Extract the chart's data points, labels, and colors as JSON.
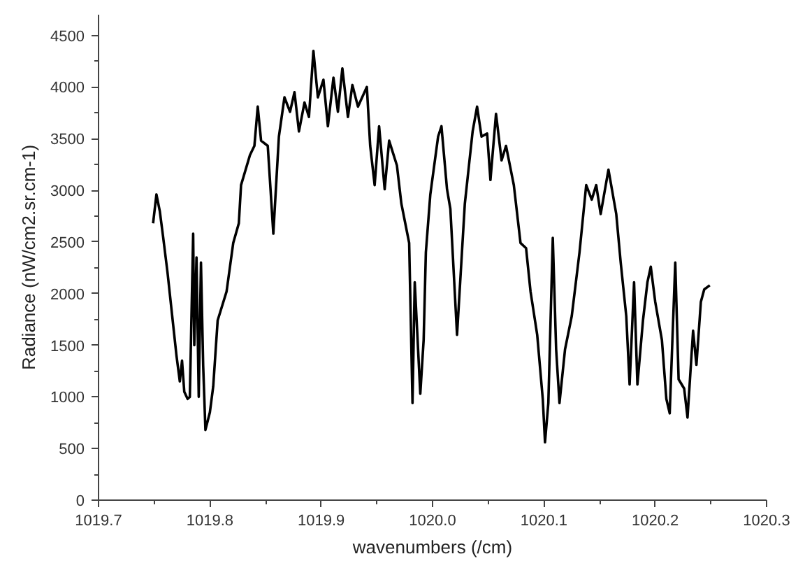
{
  "chart_data": {
    "type": "line",
    "xlabel": "wavenumbers (/cm)",
    "ylabel": "Radiance (nW/cm2.sr.cm-1)",
    "xlim": [
      1019.7,
      1020.3
    ],
    "ylim": [
      0,
      4700
    ],
    "xticks": [
      1019.7,
      1019.8,
      1019.9,
      {
        "value": 1020.0,
        "label": "1020.0"
      },
      1020.1,
      1020.2,
      1020.3
    ],
    "yticks": [
      0,
      500,
      1000,
      1500,
      2000,
      2500,
      3000,
      3500,
      4000,
      4500
    ],
    "grid": false,
    "marker": "none",
    "line_style": "solid",
    "series": [
      {
        "color": "#000000",
        "x": [
          1019.749,
          1019.752,
          1019.755,
          1019.758,
          1019.762,
          1019.766,
          1019.77,
          1019.773,
          1019.775,
          1019.777,
          1019.78,
          1019.782,
          1019.785,
          1019.786,
          1019.788,
          1019.79,
          1019.792,
          1019.794,
          1019.796,
          1019.8,
          1019.803,
          1019.807,
          1019.815,
          1019.821,
          1019.826,
          1019.828,
          1019.836,
          1019.84,
          1019.843,
          1019.846,
          1019.852,
          1019.857,
          1019.862,
          1019.867,
          1019.872,
          1019.876,
          1019.88,
          1019.885,
          1019.889,
          1019.893,
          1019.897,
          1019.902,
          1019.906,
          1019.911,
          1019.915,
          1019.919,
          1019.924,
          1019.928,
          1019.933,
          1019.941,
          1019.944,
          1019.948,
          1019.952,
          1019.957,
          1019.961,
          1019.968,
          1019.972,
          1019.979,
          1019.982,
          1019.984,
          1019.989,
          1019.992,
          1019.994,
          1019.998,
          1020.005,
          1020.008,
          1020.013,
          1020.016,
          1020.022,
          1020.029,
          1020.036,
          1020.04,
          1020.044,
          1020.049,
          1020.052,
          1020.057,
          1020.062,
          1020.066,
          1020.073,
          1020.079,
          1020.084,
          1020.088,
          1020.094,
          1020.099,
          1020.101,
          1020.104,
          1020.108,
          1020.111,
          1020.114,
          1020.119,
          1020.125,
          1020.132,
          1020.138,
          1020.143,
          1020.147,
          1020.151,
          1020.158,
          1020.165,
          1020.169,
          1020.174,
          1020.177,
          1020.181,
          1020.184,
          1020.189,
          1020.193,
          1020.196,
          1020.2,
          1020.206,
          1020.21,
          1020.213,
          1020.218,
          1020.221,
          1020.226,
          1020.229,
          1020.234,
          1020.237,
          1020.241,
          1020.244,
          1020.249
        ],
        "values": [
          2680,
          2960,
          2800,
          2550,
          2200,
          1800,
          1400,
          1150,
          1350,
          1050,
          980,
          1000,
          2580,
          1500,
          2350,
          1000,
          2300,
          1300,
          680,
          850,
          1100,
          1740,
          2020,
          2490,
          2680,
          3050,
          3340,
          3430,
          3810,
          3480,
          3430,
          2580,
          3520,
          3900,
          3760,
          3950,
          3570,
          3850,
          3710,
          4350,
          3900,
          4070,
          3620,
          4090,
          3760,
          4180,
          3710,
          4020,
          3810,
          4000,
          3430,
          3050,
          3620,
          3010,
          3480,
          3240,
          2870,
          2490,
          940,
          2110,
          1030,
          1550,
          2400,
          2960,
          3520,
          3620,
          3010,
          2820,
          1600,
          2870,
          3570,
          3810,
          3520,
          3550,
          3100,
          3740,
          3290,
          3430,
          3050,
          2490,
          2440,
          2020,
          1600,
          980,
          560,
          940,
          2540,
          1460,
          940,
          1460,
          1780,
          2400,
          3050,
          2910,
          3050,
          2770,
          3200,
          2770,
          2300,
          1780,
          1120,
          2110,
          1120,
          1740,
          2110,
          2260,
          1920,
          1550,
          980,
          840,
          2300,
          1170,
          1080,
          800,
          1640,
          1310,
          1920,
          2040,
          2080
        ]
      }
    ]
  }
}
